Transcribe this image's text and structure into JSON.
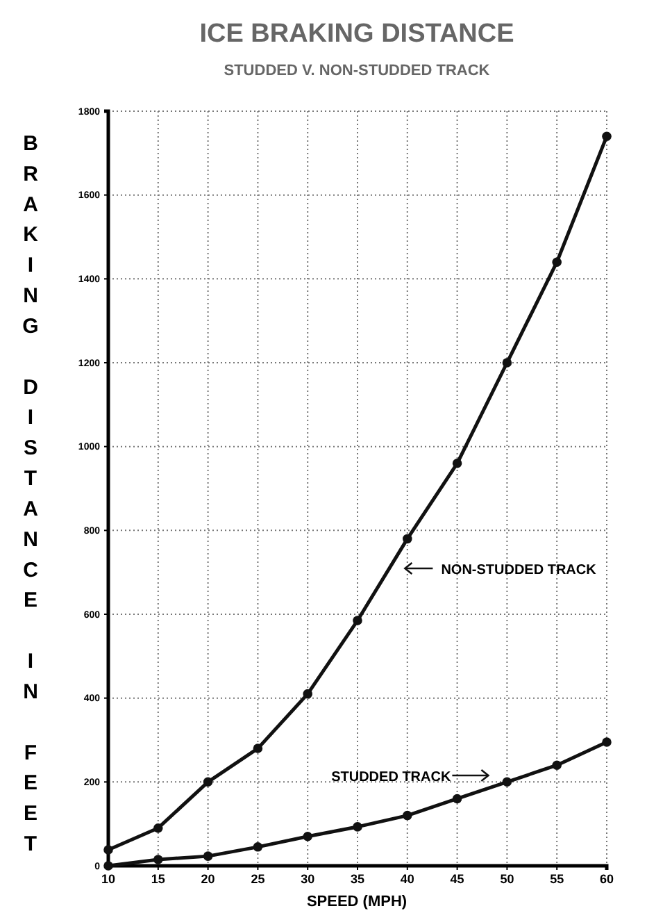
{
  "chart_data": {
    "type": "line",
    "title": "ICE BRAKING DISTANCE",
    "subtitle": "STUDDED V. NON-STUDDED TRACK",
    "xlabel": "SPEED (MPH)",
    "ylabel": "BRAKING DISTANCE IN FEET",
    "x": [
      10,
      15,
      20,
      25,
      30,
      35,
      40,
      45,
      50,
      55,
      60
    ],
    "series": [
      {
        "color": "#111111",
        "values": [
          38,
          90,
          200,
          280,
          410,
          585,
          780,
          960,
          1200,
          1440,
          1740
        ]
      },
      {
        "color": "#111111",
        "values": [
          0,
          15,
          23,
          45,
          70,
          93,
          120,
          160,
          200,
          240,
          295
        ]
      }
    ],
    "annotations": [
      "NON-STUDDED TRACK",
      "STUDDED TRACK"
    ],
    "xlim": [
      10,
      60
    ],
    "xticks": [
      10,
      15,
      20,
      25,
      30,
      35,
      40,
      45,
      50,
      55,
      60
    ],
    "ylim": [
      0,
      1800
    ],
    "yticks": [
      0,
      200,
      400,
      600,
      800,
      1000,
      1200,
      1400,
      1600,
      1800
    ],
    "grid": true,
    "marker": "circle",
    "line_style": "solid"
  }
}
